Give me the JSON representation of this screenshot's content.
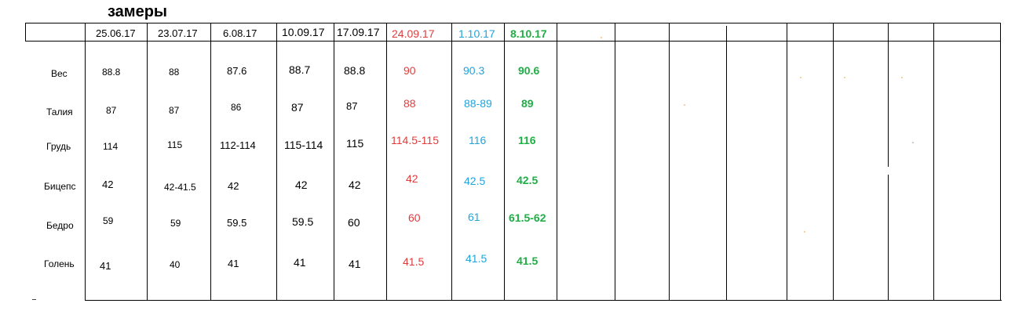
{
  "title": "замеры",
  "dates": [
    "25.06.17",
    "23.07.17",
    "6.08.17",
    "10.09.17",
    "17.09.17",
    "24.09.17",
    "1.10.17",
    "8.10.17"
  ],
  "labels": [
    "Вес",
    "Талия",
    "Грудь",
    "Бицепс",
    "Бедро",
    "Голень"
  ],
  "rows": [
    [
      "88.8",
      "88",
      "87.6",
      "88.7",
      "88.8",
      "90",
      "90.3",
      "90.6"
    ],
    [
      "87",
      "87",
      "86",
      "87",
      "87",
      "88",
      "88-89",
      "89"
    ],
    [
      "114",
      "115",
      "112-114",
      "115-114",
      "115",
      "114.5-115",
      "116",
      "116"
    ],
    [
      "42",
      "42-41.5",
      "42",
      "42",
      "42",
      "42",
      "42.5",
      "42.5"
    ],
    [
      "59",
      "59",
      "59.5",
      "59.5",
      "60",
      "60",
      "61",
      "61.5-62"
    ],
    [
      "41",
      "40",
      "41",
      "41",
      "41",
      "41.5",
      "41.5",
      "41.5"
    ]
  ],
  "colors": {
    "red": "#e03c3c",
    "blue": "#1fa4dc",
    "green": "#1fae45"
  }
}
